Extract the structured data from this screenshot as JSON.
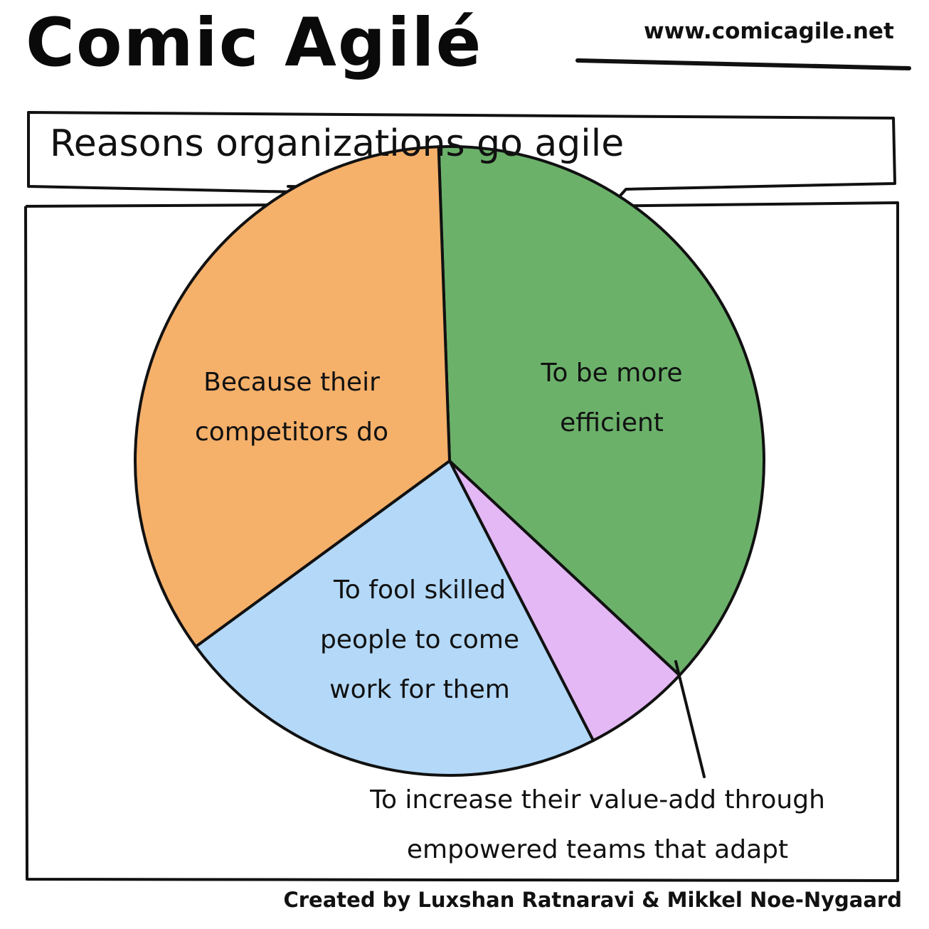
{
  "header": {
    "brand": "Comic Agilé",
    "url": "www.comicagile.net"
  },
  "footer": {
    "credit": "Created by Luxshan Ratnaravi & Mikkel Noe-Nygaard"
  },
  "colors": {
    "orange": "#f5b06a",
    "green": "#6bb16a",
    "blue": "#b3d8f8",
    "purple": "#e3b8f5",
    "ink": "#111111"
  },
  "chart_data": {
    "type": "pie",
    "title": "Reasons organizations go agile",
    "slices": [
      {
        "label": "To be more\nefficient",
        "value": 37.5,
        "color": "#6bb16a"
      },
      {
        "label": "To increase their value-add through\nempowered teams that adapt",
        "value": 5.5,
        "color": "#e3b8f5"
      },
      {
        "label": "To fool skilled\npeople to come\nwork for them",
        "value": 22.5,
        "color": "#b3d8f8"
      },
      {
        "label": "Because their\ncompetitors do",
        "value": 34.5,
        "color": "#f5b06a"
      }
    ]
  }
}
